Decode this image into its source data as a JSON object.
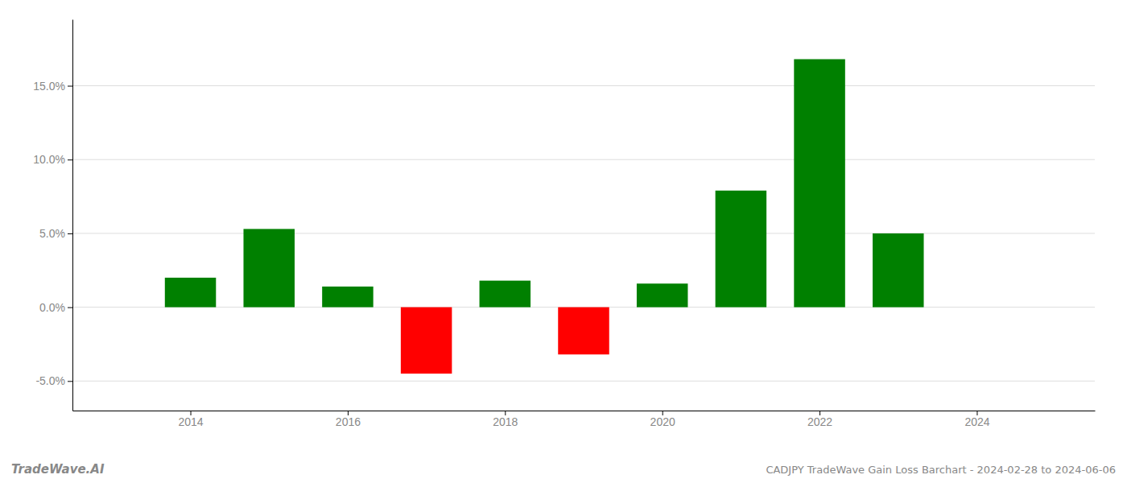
{
  "chart_data": {
    "type": "bar",
    "x": [
      2014,
      2015,
      2016,
      2017,
      2018,
      2019,
      2020,
      2021,
      2022,
      2023
    ],
    "values": [
      0.02,
      0.053,
      0.014,
      -0.045,
      0.018,
      -0.032,
      0.016,
      0.079,
      0.168,
      0.05
    ],
    "colors": [
      "#008000",
      "#008000",
      "#008000",
      "#ff0000",
      "#008000",
      "#ff0000",
      "#008000",
      "#008000",
      "#008000",
      "#008000"
    ],
    "xlim": [
      2012.5,
      2025.5
    ],
    "xticks": [
      2014,
      2016,
      2018,
      2020,
      2022,
      2024
    ],
    "ylim": [
      -0.07,
      0.195
    ],
    "yticks": [
      {
        "value": -0.05,
        "label": "-5.0%"
      },
      {
        "value": 0.0,
        "label": "0.0%"
      },
      {
        "value": 0.05,
        "label": "5.0%"
      },
      {
        "value": 0.1,
        "label": "10.0%"
      },
      {
        "value": 0.15,
        "label": "15.0%"
      }
    ],
    "grid": true,
    "annotations": [
      "TradeWave.AI",
      "CADJPY TradeWave Gain Loss Barchart - 2024-02-28 to 2024-06-06"
    ]
  }
}
